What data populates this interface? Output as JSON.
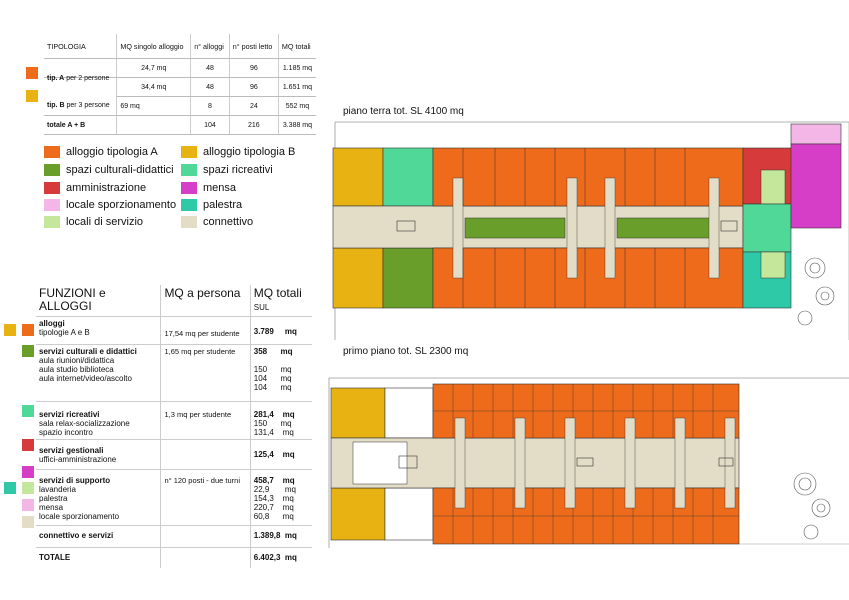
{
  "top_table": {
    "headers": [
      "TIPOLOGIA",
      "MQ singolo alloggio",
      "n° alloggi",
      "n° posti letto",
      "MQ totali"
    ],
    "rows": [
      {
        "label_b": "",
        "label": "",
        "mq": "24,7 mq",
        "n": "48",
        "posti": "96",
        "tot": "1.185 mq"
      },
      {
        "label_b": "tip. A",
        "label": "per 2 persone",
        "mq": "34,4 mq",
        "n": "48",
        "posti": "96",
        "tot": "1.651 mq"
      },
      {
        "label_b": "tip. B",
        "label": "per 3 persone",
        "mq": "69 mq",
        "n": "8",
        "posti": "24",
        "tot": "552 mq"
      },
      {
        "label_b": "totale A + B",
        "label": "",
        "mq": "",
        "n": "104",
        "posti": "216",
        "tot": "3.388 mq"
      }
    ]
  },
  "legend": [
    {
      "label": "alloggio tipologia A",
      "color": "#ee6b1c"
    },
    {
      "label": "alloggio tipologia B",
      "color": "#e8b212"
    },
    {
      "label": "spazi culturali-didattici",
      "color": "#6a9e2a"
    },
    {
      "label": "spazi ricreativi",
      "color": "#4fd898"
    },
    {
      "label": "amministrazione",
      "color": "#d63a3a"
    },
    {
      "label": "mensa",
      "color": "#d63ec8"
    },
    {
      "label": "locale sporzionamento",
      "color": "#f3b6e6"
    },
    {
      "label": "palestra",
      "color": "#2ec9a6"
    },
    {
      "label": "locali di servizio",
      "color": "#c4e79c"
    },
    {
      "label": "connettivo",
      "color": "#e3dcc6"
    }
  ],
  "bottom_table": {
    "headers": [
      "FUNZIONI e ALLOGGI",
      "MQ a persona",
      "MQ totali",
      "SUL"
    ],
    "rows": [
      {
        "title": "alloggi",
        "subs": [
          "tipologie A e B"
        ],
        "per": "17,54 mq per studente",
        "tot": "3.789",
        "unit": "mq",
        "subvals": []
      },
      {
        "title": "servizi culturali e didattici",
        "subs": [
          "aula riunioni/didattica",
          "aula studio biblioteca",
          "aula internet/video/ascolto"
        ],
        "per": "1,65 mq per studente",
        "tot": "358",
        "unit": "mq",
        "subvals": [
          [
            "150",
            "mq"
          ],
          [
            "104",
            "mq"
          ],
          [
            "104",
            "mq"
          ]
        ]
      },
      {
        "title": "servizi ricreativi",
        "subs": [
          "sala relax-socializzazione",
          "spazio incontro"
        ],
        "per": "1,3  mq per studente",
        "tot": "281,4",
        "unit": "mq",
        "subvals": [
          [
            "150",
            "mq"
          ],
          [
            "131,4",
            "mq"
          ]
        ]
      },
      {
        "title": "servizi gestionali",
        "subs": [
          "uffici-amministrazione"
        ],
        "per": "",
        "tot": "125,4",
        "unit": "mq",
        "subvals": []
      },
      {
        "title": "servizi di supporto",
        "subs": [
          "lavanderia",
          "palestra",
          "mensa",
          "locale sporzionamento"
        ],
        "per": "n° 120 posti - due turni",
        "tot": "458,7",
        "unit": "mq",
        "subvals": [
          [
            "22,9",
            "mq"
          ],
          [
            "154,3",
            "mq"
          ],
          [
            "220,7",
            "mq"
          ],
          [
            "60,8",
            "mq"
          ]
        ]
      },
      {
        "title": "connettivo e servizi",
        "subs": [],
        "per": "",
        "tot": "1.389,8",
        "unit": "mq",
        "subvals": []
      },
      {
        "title": "TOTALE",
        "subs": [],
        "per": "",
        "tot": "6.402,3",
        "unit": "mq",
        "subvals": []
      }
    ]
  },
  "plans": {
    "ground_title": "piano terra tot. SL   4100 mq",
    "first_title": "primo piano tot. SL   2300 mq"
  }
}
